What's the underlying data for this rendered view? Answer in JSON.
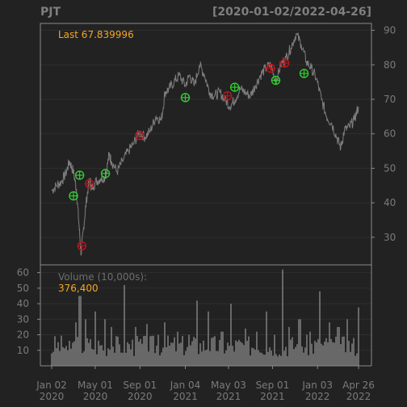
{
  "chart_data": {
    "type": "line",
    "symbol": "PJT",
    "date_range": "[2020-01-02/2022-04-26]",
    "last_label": "Last 67.839996",
    "volume_title": "Volume (10,000s):",
    "volume_last": "376,400",
    "price_ylim": [
      22,
      92
    ],
    "price_ticks": [
      30,
      40,
      50,
      60,
      70,
      80,
      90
    ],
    "volume_ylim": [
      0,
      65
    ],
    "volume_ticks": [
      10,
      20,
      30,
      40,
      50,
      60
    ],
    "x_ticks": [
      {
        "date": "2020-01-02",
        "top": "Jan 02",
        "bottom": "2020"
      },
      {
        "date": "2020-05-01",
        "top": "May 01",
        "bottom": "2020"
      },
      {
        "date": "2020-09-01",
        "top": "Sep 01",
        "bottom": "2020"
      },
      {
        "date": "2021-01-04",
        "top": "Jan 04",
        "bottom": "2021"
      },
      {
        "date": "2021-05-03",
        "top": "May 03",
        "bottom": "2021"
      },
      {
        "date": "2021-09-01",
        "top": "Sep 01",
        "bottom": "2021"
      },
      {
        "date": "2022-01-03",
        "top": "Jan 03",
        "bottom": "2022"
      },
      {
        "date": "2022-04-26",
        "top": "Apr 26",
        "bottom": "2022"
      }
    ],
    "price_series": [
      [
        "2020-01-02",
        43.5
      ],
      [
        "2020-01-15",
        45
      ],
      [
        "2020-01-28",
        46
      ],
      [
        "2020-02-10",
        48.5
      ],
      [
        "2020-02-20",
        52
      ],
      [
        "2020-03-02",
        49
      ],
      [
        "2020-03-10",
        44
      ],
      [
        "2020-03-17",
        34
      ],
      [
        "2020-03-23",
        25
      ],
      [
        "2020-03-30",
        33
      ],
      [
        "2020-04-07",
        41
      ],
      [
        "2020-04-15",
        47
      ],
      [
        "2020-04-22",
        44
      ],
      [
        "2020-05-01",
        46
      ],
      [
        "2020-05-15",
        47
      ],
      [
        "2020-05-29",
        47.5
      ],
      [
        "2020-06-08",
        54
      ],
      [
        "2020-06-15",
        52
      ],
      [
        "2020-06-30",
        49
      ],
      [
        "2020-07-15",
        52
      ],
      [
        "2020-07-31",
        55
      ],
      [
        "2020-08-14",
        57
      ],
      [
        "2020-08-31",
        60.5
      ],
      [
        "2020-09-15",
        59
      ],
      [
        "2020-09-30",
        61
      ],
      [
        "2020-10-15",
        65
      ],
      [
        "2020-10-30",
        64
      ],
      [
        "2020-11-09",
        72
      ],
      [
        "2020-11-20",
        73
      ],
      [
        "2020-12-04",
        75
      ],
      [
        "2020-12-18",
        77
      ],
      [
        "2021-01-04",
        74
      ],
      [
        "2021-01-15",
        77
      ],
      [
        "2021-01-29",
        74
      ],
      [
        "2021-02-12",
        80
      ],
      [
        "2021-02-26",
        77
      ],
      [
        "2021-03-12",
        72
      ],
      [
        "2021-03-26",
        71
      ],
      [
        "2021-04-09",
        72
      ],
      [
        "2021-04-23",
        70
      ],
      [
        "2021-05-07",
        68
      ],
      [
        "2021-05-21",
        70
      ],
      [
        "2021-06-04",
        73
      ],
      [
        "2021-06-18",
        72
      ],
      [
        "2021-07-02",
        71
      ],
      [
        "2021-07-16",
        74
      ],
      [
        "2021-07-30",
        77
      ],
      [
        "2021-08-13",
        79
      ],
      [
        "2021-08-27",
        80
      ],
      [
        "2021-09-10",
        75
      ],
      [
        "2021-09-24",
        80
      ],
      [
        "2021-10-08",
        82
      ],
      [
        "2021-10-22",
        85
      ],
      [
        "2021-11-05",
        89
      ],
      [
        "2021-11-19",
        86
      ],
      [
        "2021-12-03",
        81
      ],
      [
        "2021-12-17",
        79
      ],
      [
        "2021-12-31",
        76
      ],
      [
        "2022-01-14",
        70
      ],
      [
        "2022-01-28",
        65
      ],
      [
        "2022-02-11",
        63
      ],
      [
        "2022-02-25",
        59
      ],
      [
        "2022-03-08",
        56
      ],
      [
        "2022-03-18",
        61
      ],
      [
        "2022-04-01",
        62
      ],
      [
        "2022-04-14",
        64
      ],
      [
        "2022-04-26",
        67.84
      ]
    ],
    "buy_signals": [
      [
        "2020-03-02",
        42
      ],
      [
        "2020-03-19",
        48
      ],
      [
        "2020-05-29",
        48.5
      ],
      [
        "2021-01-04",
        70.5
      ],
      [
        "2021-05-20",
        73.5
      ],
      [
        "2021-09-10",
        75.5
      ],
      [
        "2021-11-27",
        77.5
      ]
    ],
    "sell_signals": [
      [
        "2020-03-25",
        27.5
      ],
      [
        "2020-04-15",
        45.5
      ],
      [
        "2020-08-31",
        59.5
      ],
      [
        "2021-04-30",
        71
      ],
      [
        "2021-08-27",
        79
      ],
      [
        "2021-10-05",
        80.5
      ]
    ],
    "volume_peaks": [
      [
        "2020-01-02",
        8
      ],
      [
        "2020-02-15",
        10
      ],
      [
        "2020-03-10",
        28
      ],
      [
        "2020-03-20",
        45
      ],
      [
        "2020-04-05",
        30
      ],
      [
        "2020-05-01",
        35
      ],
      [
        "2020-05-28",
        30
      ],
      [
        "2020-06-15",
        25
      ],
      [
        "2020-07-20",
        52
      ],
      [
        "2020-08-20",
        25
      ],
      [
        "2020-09-20",
        27
      ],
      [
        "2020-10-20",
        20
      ],
      [
        "2020-11-10",
        28
      ],
      [
        "2020-12-15",
        22
      ],
      [
        "2021-01-15",
        20
      ],
      [
        "2021-02-05",
        42
      ],
      [
        "2021-03-10",
        35
      ],
      [
        "2021-04-15",
        22
      ],
      [
        "2021-05-10",
        40
      ],
      [
        "2021-06-20",
        24
      ],
      [
        "2021-07-20",
        22
      ],
      [
        "2021-08-15",
        35
      ],
      [
        "2021-09-05",
        20
      ],
      [
        "2021-09-28",
        62
      ],
      [
        "2021-10-15",
        25
      ],
      [
        "2021-11-15",
        30
      ],
      [
        "2021-12-15",
        22
      ],
      [
        "2022-01-10",
        48
      ],
      [
        "2022-02-05",
        28
      ],
      [
        "2022-03-01",
        25
      ],
      [
        "2022-03-25",
        30
      ],
      [
        "2022-04-26",
        37.6
      ]
    ],
    "colors": {
      "background": "#222222",
      "frame": "#8a8a8a",
      "grid": "#2e2e2e",
      "price_line": "#7f7f7f",
      "volume_bar": "#7a7a7a",
      "buy": "#32cd32",
      "sell": "#c0141b",
      "annotation": "#f5a623"
    }
  }
}
